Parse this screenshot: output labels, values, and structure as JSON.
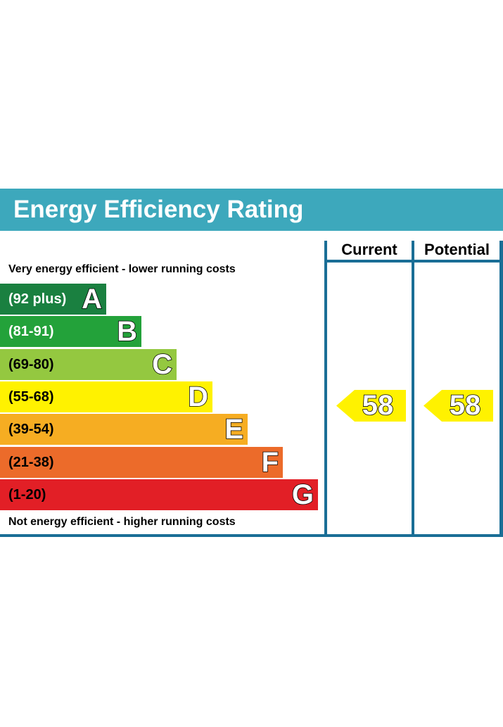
{
  "title": "Energy Efficiency Rating",
  "chart_data": {
    "type": "bar",
    "title": "Energy Efficiency Rating",
    "top_caption": "Very energy efficient - lower running costs",
    "bottom_caption": "Not energy efficient - higher running costs",
    "columns": [
      "Current",
      "Potential"
    ],
    "bands": [
      {
        "letter": "A",
        "range": "(92 plus)",
        "min": 92,
        "max": 100,
        "color": "#1a8040",
        "range_color": "#ffffff"
      },
      {
        "letter": "B",
        "range": "(81-91)",
        "min": 81,
        "max": 91,
        "color": "#23a23a",
        "range_color": "#ffffff"
      },
      {
        "letter": "C",
        "range": "(69-80)",
        "min": 69,
        "max": 80,
        "color": "#94c840",
        "range_color": "#000000"
      },
      {
        "letter": "D",
        "range": "(55-68)",
        "min": 55,
        "max": 68,
        "color": "#fff200",
        "range_color": "#000000"
      },
      {
        "letter": "E",
        "range": "(39-54)",
        "min": 39,
        "max": 54,
        "color": "#f6ad22",
        "range_color": "#000000"
      },
      {
        "letter": "F",
        "range": "(21-38)",
        "min": 21,
        "max": 38,
        "color": "#ec6b2a",
        "range_color": "#000000"
      },
      {
        "letter": "G",
        "range": "(1-20)",
        "min": 1,
        "max": 20,
        "color": "#e21f26",
        "range_color": "#000000"
      }
    ],
    "current": {
      "value": "58",
      "band": "D",
      "color": "#fff200"
    },
    "potential": {
      "value": "58",
      "band": "D",
      "color": "#fff200"
    }
  },
  "colors": {
    "header": "#3da8bc",
    "frame": "#1a6e96"
  }
}
